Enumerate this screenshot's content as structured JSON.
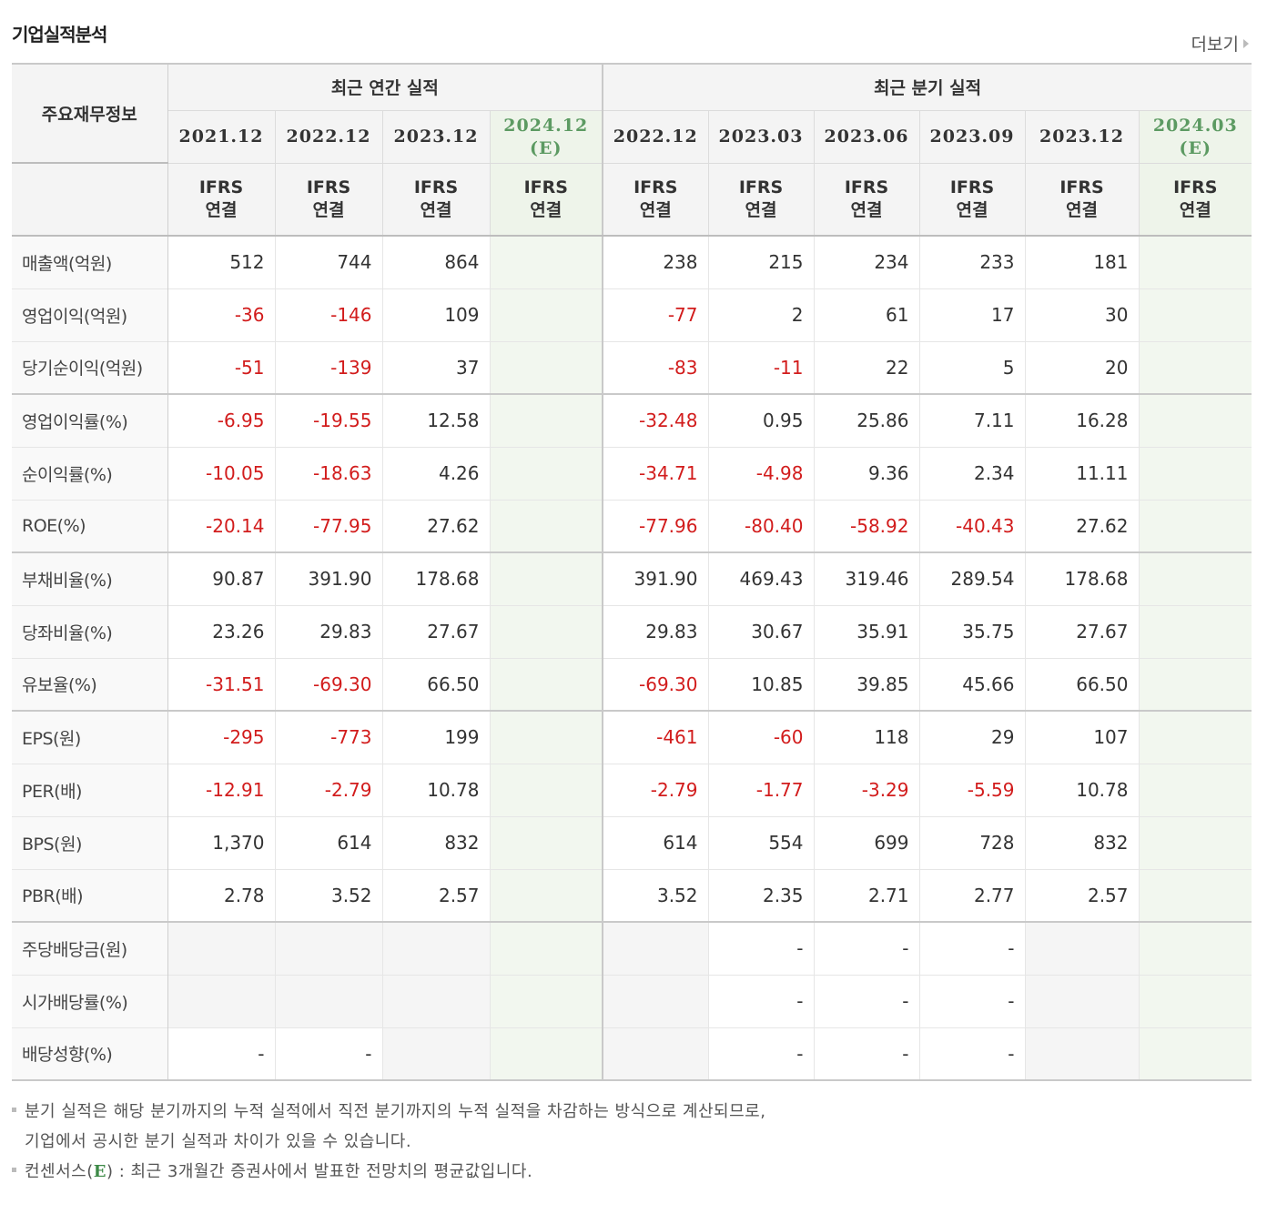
{
  "title": "기업실적분석",
  "more_link": "더보기",
  "header": {
    "label_column": "주요재무정보",
    "annual_group": "최근 연간 실적",
    "quarter_group": "최근 분기 실적",
    "annual_periods": [
      {
        "date": "2021.12",
        "est": ""
      },
      {
        "date": "2022.12",
        "est": ""
      },
      {
        "date": "2023.12",
        "est": ""
      },
      {
        "date": "2024.12",
        "est": "(E)"
      }
    ],
    "quarter_periods": [
      {
        "date": "2022.12",
        "est": ""
      },
      {
        "date": "2023.03",
        "est": ""
      },
      {
        "date": "2023.06",
        "est": ""
      },
      {
        "date": "2023.09",
        "est": ""
      },
      {
        "date": "2023.12",
        "est": ""
      },
      {
        "date": "2024.03",
        "est": "(E)"
      }
    ],
    "standard_line1": "IFRS",
    "standard_line2": "연결"
  },
  "rows": [
    {
      "label": "매출액(억원)",
      "annual": [
        "512",
        "744",
        "864",
        ""
      ],
      "quarter": [
        "238",
        "215",
        "234",
        "233",
        "181",
        ""
      ]
    },
    {
      "label": "영업이익(억원)",
      "annual": [
        "-36",
        "-146",
        "109",
        ""
      ],
      "quarter": [
        "-77",
        "2",
        "61",
        "17",
        "30",
        ""
      ]
    },
    {
      "label": "당기순이익(억원)",
      "annual": [
        "-51",
        "-139",
        "37",
        ""
      ],
      "quarter": [
        "-83",
        "-11",
        "22",
        "5",
        "20",
        ""
      ]
    },
    {
      "label": "영업이익률(%)",
      "annual": [
        "-6.95",
        "-19.55",
        "12.58",
        ""
      ],
      "quarter": [
        "-32.48",
        "0.95",
        "25.86",
        "7.11",
        "16.28",
        ""
      ]
    },
    {
      "label": "순이익률(%)",
      "annual": [
        "-10.05",
        "-18.63",
        "4.26",
        ""
      ],
      "quarter": [
        "-34.71",
        "-4.98",
        "9.36",
        "2.34",
        "11.11",
        ""
      ]
    },
    {
      "label": "ROE(%)",
      "annual": [
        "-20.14",
        "-77.95",
        "27.62",
        ""
      ],
      "quarter": [
        "-77.96",
        "-80.40",
        "-58.92",
        "-40.43",
        "27.62",
        ""
      ]
    },
    {
      "label": "부채비율(%)",
      "annual": [
        "90.87",
        "391.90",
        "178.68",
        ""
      ],
      "quarter": [
        "391.90",
        "469.43",
        "319.46",
        "289.54",
        "178.68",
        ""
      ]
    },
    {
      "label": "당좌비율(%)",
      "annual": [
        "23.26",
        "29.83",
        "27.67",
        ""
      ],
      "quarter": [
        "29.83",
        "30.67",
        "35.91",
        "35.75",
        "27.67",
        ""
      ]
    },
    {
      "label": "유보율(%)",
      "annual": [
        "-31.51",
        "-69.30",
        "66.50",
        ""
      ],
      "quarter": [
        "-69.30",
        "10.85",
        "39.85",
        "45.66",
        "66.50",
        ""
      ]
    },
    {
      "label": "EPS(원)",
      "annual": [
        "-295",
        "-773",
        "199",
        ""
      ],
      "quarter": [
        "-461",
        "-60",
        "118",
        "29",
        "107",
        ""
      ]
    },
    {
      "label": "PER(배)",
      "annual": [
        "-12.91",
        "-2.79",
        "10.78",
        ""
      ],
      "quarter": [
        "-2.79",
        "-1.77",
        "-3.29",
        "-5.59",
        "10.78",
        ""
      ]
    },
    {
      "label": "BPS(원)",
      "annual": [
        "1,370",
        "614",
        "832",
        ""
      ],
      "quarter": [
        "614",
        "554",
        "699",
        "728",
        "832",
        ""
      ]
    },
    {
      "label": "PBR(배)",
      "annual": [
        "2.78",
        "3.52",
        "2.57",
        ""
      ],
      "quarter": [
        "3.52",
        "2.35",
        "2.71",
        "2.77",
        "2.57",
        ""
      ]
    },
    {
      "label": "주당배당금(원)",
      "annual": [
        null,
        null,
        null,
        ""
      ],
      "quarter": [
        null,
        "-",
        "-",
        "-",
        null,
        ""
      ]
    },
    {
      "label": "시가배당률(%)",
      "annual": [
        null,
        null,
        null,
        ""
      ],
      "quarter": [
        null,
        "-",
        "-",
        "-",
        null,
        ""
      ]
    },
    {
      "label": "배당성향(%)",
      "annual": [
        "-",
        "-",
        null,
        ""
      ],
      "quarter": [
        null,
        "-",
        "-",
        "-",
        null,
        ""
      ]
    }
  ],
  "group_starts": [
    3,
    6,
    9,
    13
  ],
  "notes": {
    "line1": "분기 실적은 해당 분기까지의 누적 실적에서 직전 분기까지의 누적 실적을 차감하는 방식으로 계산되므로,",
    "line2": "기업에서 공시한 분기 실적과 차이가 있을 수 있습니다.",
    "line3_prefix": "컨센서스(",
    "line3_badge": "E",
    "line3_suffix": ") : 최근 3개월간 증권사에서 발표한 전망치의 평균값입니다."
  }
}
